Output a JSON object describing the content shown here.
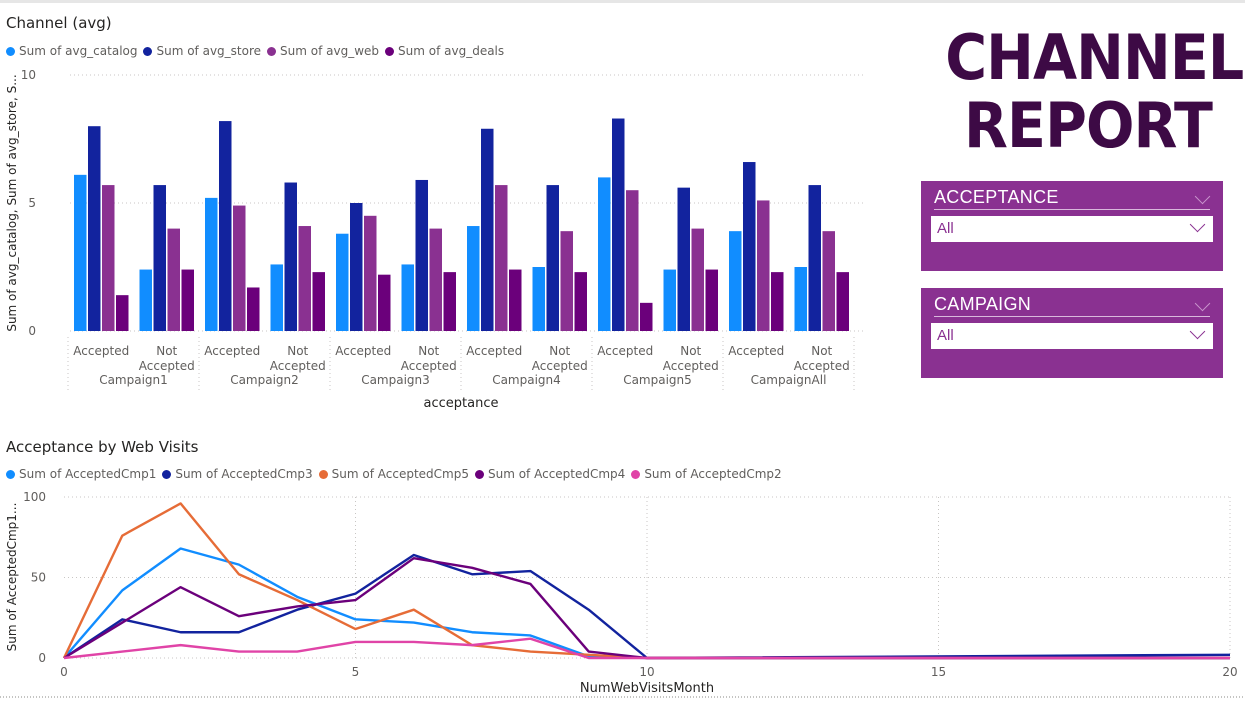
{
  "report": {
    "title_line1": "CHANNEL",
    "title_line2": "REPORT"
  },
  "slicers": [
    {
      "label": "ACCEPTANCE",
      "value": "All"
    },
    {
      "label": "CAMPAIGN",
      "value": "All"
    }
  ],
  "chart_data": [
    {
      "type": "bar",
      "title": "Channel (avg)",
      "xlabel": "acceptance",
      "ylabel": "Sum of avg_catalog, Sum of avg_store, S...",
      "ylim": [
        0,
        10
      ],
      "yticks": [
        0,
        5,
        10
      ],
      "legend_position": "top-left",
      "grid": true,
      "groups": [
        "Campaign1",
        "Campaign2",
        "Campaign3",
        "Campaign4",
        "Campaign5",
        "CampaignAll"
      ],
      "subcategories": [
        [
          "Accepted"
        ],
        [
          "Not",
          "Accepted"
        ]
      ],
      "series": [
        {
          "name": "Sum of avg_catalog",
          "color": "#118dff",
          "values": [
            6.1,
            2.4,
            5.2,
            2.6,
            3.8,
            2.6,
            4.1,
            2.5,
            6.0,
            2.4,
            3.9,
            2.5
          ]
        },
        {
          "name": "Sum of avg_store",
          "color": "#12239e",
          "values": [
            8.0,
            5.7,
            8.2,
            5.8,
            5.0,
            5.9,
            7.9,
            5.7,
            8.3,
            5.6,
            6.6,
            5.7
          ]
        },
        {
          "name": "Sum of avg_web",
          "color": "#8a3191",
          "values": [
            5.7,
            4.0,
            4.9,
            4.1,
            4.5,
            4.0,
            5.7,
            3.9,
            5.5,
            4.0,
            5.1,
            3.9
          ]
        },
        {
          "name": "Sum of avg_deals",
          "color": "#6b007b",
          "values": [
            1.4,
            2.4,
            1.7,
            2.3,
            2.2,
            2.3,
            2.4,
            2.3,
            1.1,
            2.4,
            2.3,
            2.3
          ]
        }
      ]
    },
    {
      "type": "line",
      "title": "Acceptance by Web Visits",
      "xlabel": "NumWebVisitsMonth",
      "ylabel": "Sum of AcceptedCmp1...",
      "xlim": [
        0,
        20
      ],
      "ylim": [
        0,
        100
      ],
      "xticks": [
        0,
        5,
        10,
        15,
        20
      ],
      "yticks": [
        0,
        50,
        100
      ],
      "legend_position": "top-left",
      "grid": true,
      "x": [
        0,
        1,
        2,
        3,
        4,
        5,
        6,
        7,
        8,
        9,
        10,
        20
      ],
      "series": [
        {
          "name": "Sum of AcceptedCmp1",
          "color": "#118dff",
          "values": [
            0,
            42,
            68,
            58,
            38,
            24,
            22,
            16,
            14,
            1,
            0,
            0
          ]
        },
        {
          "name": "Sum of AcceptedCmp3",
          "color": "#12239e",
          "values": [
            0,
            24,
            16,
            16,
            30,
            40,
            64,
            52,
            54,
            30,
            0,
            2
          ]
        },
        {
          "name": "Sum of AcceptedCmp5",
          "color": "#e66c37",
          "values": [
            0,
            76,
            96,
            52,
            36,
            18,
            30,
            8,
            4,
            2,
            0,
            0
          ]
        },
        {
          "name": "Sum of AcceptedCmp4",
          "color": "#6b007b",
          "values": [
            0,
            22,
            44,
            26,
            32,
            36,
            62,
            56,
            46,
            4,
            0,
            0
          ]
        },
        {
          "name": "Sum of AcceptedCmp2",
          "color": "#e044a7",
          "values": [
            0,
            4,
            8,
            4,
            4,
            10,
            10,
            8,
            12,
            0,
            0,
            0
          ]
        }
      ]
    }
  ]
}
